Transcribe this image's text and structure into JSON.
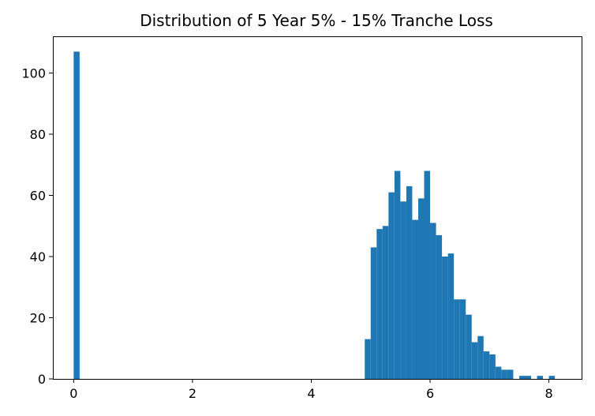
{
  "chart_data": {
    "type": "histogram",
    "title": "Distribution of 5 Year 5% - 15% Tranche Loss",
    "xlabel": "",
    "ylabel": "",
    "xlim": [
      -0.35,
      8.55
    ],
    "ylim": [
      0,
      112
    ],
    "xticks": [
      0,
      2,
      4,
      6,
      8
    ],
    "yticks": [
      0,
      20,
      40,
      60,
      80,
      100
    ],
    "grid": false,
    "legend": "none",
    "bar_color": "#1f77b4",
    "bins": [
      {
        "x0": 0.0,
        "x1": 0.1,
        "count": 107
      },
      {
        "x0": 4.9,
        "x1": 5.0,
        "count": 13
      },
      {
        "x0": 5.0,
        "x1": 5.1,
        "count": 43
      },
      {
        "x0": 5.1,
        "x1": 5.2,
        "count": 49
      },
      {
        "x0": 5.2,
        "x1": 5.3,
        "count": 50
      },
      {
        "x0": 5.3,
        "x1": 5.4,
        "count": 61
      },
      {
        "x0": 5.4,
        "x1": 5.5,
        "count": 68
      },
      {
        "x0": 5.5,
        "x1": 5.6,
        "count": 58
      },
      {
        "x0": 5.6,
        "x1": 5.7,
        "count": 63
      },
      {
        "x0": 5.7,
        "x1": 5.8,
        "count": 52
      },
      {
        "x0": 5.8,
        "x1": 5.9,
        "count": 59
      },
      {
        "x0": 5.9,
        "x1": 6.0,
        "count": 68
      },
      {
        "x0": 6.0,
        "x1": 6.1,
        "count": 51
      },
      {
        "x0": 6.1,
        "x1": 6.2,
        "count": 47
      },
      {
        "x0": 6.2,
        "x1": 6.3,
        "count": 40
      },
      {
        "x0": 6.3,
        "x1": 6.4,
        "count": 41
      },
      {
        "x0": 6.4,
        "x1": 6.5,
        "count": 26
      },
      {
        "x0": 6.5,
        "x1": 6.6,
        "count": 26
      },
      {
        "x0": 6.6,
        "x1": 6.7,
        "count": 21
      },
      {
        "x0": 6.7,
        "x1": 6.8,
        "count": 12
      },
      {
        "x0": 6.8,
        "x1": 6.9,
        "count": 14
      },
      {
        "x0": 6.9,
        "x1": 7.0,
        "count": 9
      },
      {
        "x0": 7.0,
        "x1": 7.1,
        "count": 8
      },
      {
        "x0": 7.1,
        "x1": 7.2,
        "count": 4
      },
      {
        "x0": 7.2,
        "x1": 7.3,
        "count": 3
      },
      {
        "x0": 7.3,
        "x1": 7.4,
        "count": 3
      },
      {
        "x0": 7.5,
        "x1": 7.6,
        "count": 1
      },
      {
        "x0": 7.6,
        "x1": 7.7,
        "count": 1
      },
      {
        "x0": 7.8,
        "x1": 7.9,
        "count": 1
      },
      {
        "x0": 8.0,
        "x1": 8.1,
        "count": 1
      }
    ]
  }
}
